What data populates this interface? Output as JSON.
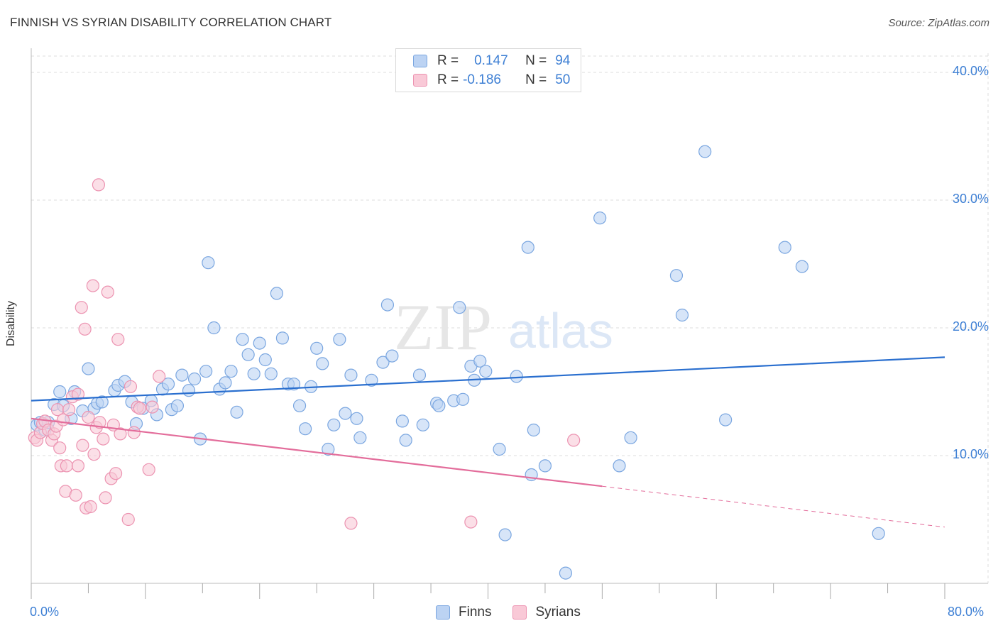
{
  "title": "FINNISH VS SYRIAN DISABILITY CORRELATION CHART",
  "source": "Source: ZipAtlas.com",
  "watermark": {
    "zip": "ZIP",
    "atlas": "atlas"
  },
  "legend_top": {
    "rows": [
      {
        "r_label": "R =",
        "r_value": "0.147",
        "n_label": "N =",
        "n_value": "94"
      },
      {
        "r_label": "R =",
        "r_value": "-0.186",
        "n_label": "N =",
        "n_value": "50"
      }
    ]
  },
  "legend_bottom": {
    "finns": "Finns",
    "syrians": "Syrians"
  },
  "colors": {
    "finns_fill": "#bcd3f3",
    "finns_stroke": "#7aa6e0",
    "finns_line": "#2a6fcf",
    "syrians_fill": "#f9c9d7",
    "syrians_stroke": "#ec93b1",
    "syrians_line": "#e36d9b",
    "tick_label": "#3d7fd4",
    "grid": "#dddddd"
  },
  "chart_data": {
    "type": "scatter",
    "title": "FINNISH VS SYRIAN DISABILITY CORRELATION CHART",
    "xlabel": "",
    "ylabel": "Disability",
    "xlim": [
      0,
      80
    ],
    "ylim": [
      0,
      41.5
    ],
    "x_tick_labels": {
      "left": "0.0%",
      "right": "80.0%"
    },
    "y_ticks": [
      10,
      20,
      30,
      40
    ],
    "y_tick_labels": [
      "10.0%",
      "20.0%",
      "30.0%",
      "40.0%"
    ],
    "grid": "horizontal dashed",
    "legend_placement": "top-center and bottom-center",
    "series": [
      {
        "name": "Finns",
        "r": 0.147,
        "n": 94,
        "trend": {
          "x0": 0,
          "y0": 14.3,
          "x1": 80,
          "y1": 17.7
        },
        "points": [
          [
            0.5,
            12.4
          ],
          [
            0.8,
            12.6
          ],
          [
            1.2,
            12.0
          ],
          [
            1.5,
            12.6
          ],
          [
            2.0,
            14.0
          ],
          [
            2.8,
            13.9
          ],
          [
            2.5,
            15.0
          ],
          [
            3.5,
            12.9
          ],
          [
            3.8,
            15.0
          ],
          [
            4.5,
            13.5
          ],
          [
            5.0,
            16.8
          ],
          [
            5.5,
            13.7
          ],
          [
            5.8,
            14.1
          ],
          [
            6.2,
            14.2
          ],
          [
            7.3,
            15.1
          ],
          [
            7.6,
            15.5
          ],
          [
            8.2,
            15.8
          ],
          [
            8.8,
            14.2
          ],
          [
            9.2,
            12.5
          ],
          [
            9.8,
            13.7
          ],
          [
            10.5,
            14.3
          ],
          [
            11.0,
            13.2
          ],
          [
            11.5,
            15.2
          ],
          [
            12.0,
            15.6
          ],
          [
            12.3,
            13.6
          ],
          [
            12.8,
            13.9
          ],
          [
            13.2,
            16.3
          ],
          [
            13.8,
            15.1
          ],
          [
            14.3,
            16.0
          ],
          [
            14.8,
            11.3
          ],
          [
            15.3,
            16.6
          ],
          [
            15.5,
            25.1
          ],
          [
            16.0,
            20.0
          ],
          [
            16.5,
            15.2
          ],
          [
            17.0,
            15.7
          ],
          [
            17.5,
            16.6
          ],
          [
            18.0,
            13.4
          ],
          [
            18.5,
            19.1
          ],
          [
            19.0,
            17.9
          ],
          [
            19.5,
            16.4
          ],
          [
            20.0,
            18.8
          ],
          [
            20.5,
            17.5
          ],
          [
            21.0,
            16.4
          ],
          [
            21.5,
            22.7
          ],
          [
            22.0,
            19.2
          ],
          [
            22.5,
            15.6
          ],
          [
            23.0,
            15.6
          ],
          [
            23.5,
            13.9
          ],
          [
            24.0,
            12.1
          ],
          [
            24.5,
            15.4
          ],
          [
            25.0,
            18.4
          ],
          [
            25.5,
            17.2
          ],
          [
            26.0,
            10.5
          ],
          [
            26.5,
            12.4
          ],
          [
            27.0,
            19.1
          ],
          [
            27.5,
            13.3
          ],
          [
            28.0,
            16.3
          ],
          [
            28.5,
            12.9
          ],
          [
            28.8,
            11.4
          ],
          [
            29.8,
            15.9
          ],
          [
            30.8,
            17.3
          ],
          [
            31.2,
            21.8
          ],
          [
            31.6,
            17.8
          ],
          [
            32.5,
            12.7
          ],
          [
            32.8,
            11.2
          ],
          [
            34.0,
            16.3
          ],
          [
            34.3,
            12.4
          ],
          [
            35.5,
            14.1
          ],
          [
            35.7,
            13.9
          ],
          [
            37.0,
            14.3
          ],
          [
            37.5,
            21.6
          ],
          [
            37.8,
            14.4
          ],
          [
            38.5,
            17.0
          ],
          [
            38.8,
            15.9
          ],
          [
            39.3,
            17.4
          ],
          [
            39.8,
            16.6
          ],
          [
            41.0,
            10.5
          ],
          [
            41.5,
            3.8
          ],
          [
            42.5,
            16.2
          ],
          [
            43.5,
            26.3
          ],
          [
            43.8,
            8.5
          ],
          [
            44.0,
            12.0
          ],
          [
            45.0,
            9.2
          ],
          [
            46.8,
            0.8
          ],
          [
            49.8,
            28.6
          ],
          [
            51.5,
            9.2
          ],
          [
            52.5,
            11.4
          ],
          [
            56.5,
            24.1
          ],
          [
            57.0,
            21.0
          ],
          [
            59.0,
            33.8
          ],
          [
            60.8,
            12.8
          ],
          [
            66.0,
            26.3
          ],
          [
            67.5,
            24.8
          ],
          [
            74.2,
            3.9
          ]
        ]
      },
      {
        "name": "Syrians",
        "r": -0.186,
        "n": 50,
        "trend": {
          "x0": 0,
          "y0": 12.9,
          "x1": 50,
          "y1": 7.6,
          "dashed_to_x": 80,
          "dashed_to_y": 4.4
        },
        "points": [
          [
            0.3,
            11.4
          ],
          [
            0.5,
            11.2
          ],
          [
            0.8,
            11.8
          ],
          [
            1.0,
            12.5
          ],
          [
            1.2,
            12.7
          ],
          [
            1.5,
            12.0
          ],
          [
            1.8,
            11.2
          ],
          [
            2.0,
            11.7
          ],
          [
            2.2,
            12.3
          ],
          [
            2.3,
            13.6
          ],
          [
            2.5,
            10.6
          ],
          [
            2.6,
            9.2
          ],
          [
            2.8,
            12.8
          ],
          [
            3.0,
            7.2
          ],
          [
            3.1,
            9.2
          ],
          [
            3.3,
            13.6
          ],
          [
            3.6,
            14.6
          ],
          [
            3.9,
            6.9
          ],
          [
            4.1,
            14.8
          ],
          [
            4.1,
            9.2
          ],
          [
            4.4,
            21.6
          ],
          [
            4.5,
            10.8
          ],
          [
            4.7,
            19.9
          ],
          [
            4.8,
            5.9
          ],
          [
            5.0,
            13.0
          ],
          [
            5.2,
            6.0
          ],
          [
            5.4,
            23.3
          ],
          [
            5.5,
            10.1
          ],
          [
            5.7,
            12.2
          ],
          [
            5.9,
            31.2
          ],
          [
            6.0,
            12.6
          ],
          [
            6.3,
            11.3
          ],
          [
            6.5,
            6.7
          ],
          [
            6.7,
            22.8
          ],
          [
            7.0,
            8.2
          ],
          [
            7.2,
            12.4
          ],
          [
            7.4,
            8.6
          ],
          [
            7.6,
            19.1
          ],
          [
            7.8,
            11.7
          ],
          [
            8.5,
            5.0
          ],
          [
            8.7,
            15.4
          ],
          [
            9.0,
            11.8
          ],
          [
            9.3,
            13.8
          ],
          [
            9.5,
            13.7
          ],
          [
            10.3,
            8.9
          ],
          [
            10.6,
            13.8
          ],
          [
            11.2,
            16.2
          ],
          [
            28.0,
            4.7
          ],
          [
            38.5,
            4.8
          ],
          [
            47.5,
            11.2
          ]
        ]
      }
    ]
  }
}
